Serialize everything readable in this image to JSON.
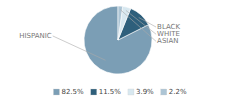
{
  "chart_data": {
    "type": "pie",
    "categories": [
      "HISPANIC",
      "BLACK",
      "WHITE",
      "ASIAN"
    ],
    "values": [
      82.5,
      11.5,
      3.9,
      2.2
    ],
    "value_labels": [
      "82.5%",
      "11.5%",
      "3.9%",
      "2.2%"
    ],
    "colors": [
      "#7b9eb5",
      "#2e5f7b",
      "#d8e8f0",
      "#adc5d5"
    ],
    "legend": "bottom"
  }
}
